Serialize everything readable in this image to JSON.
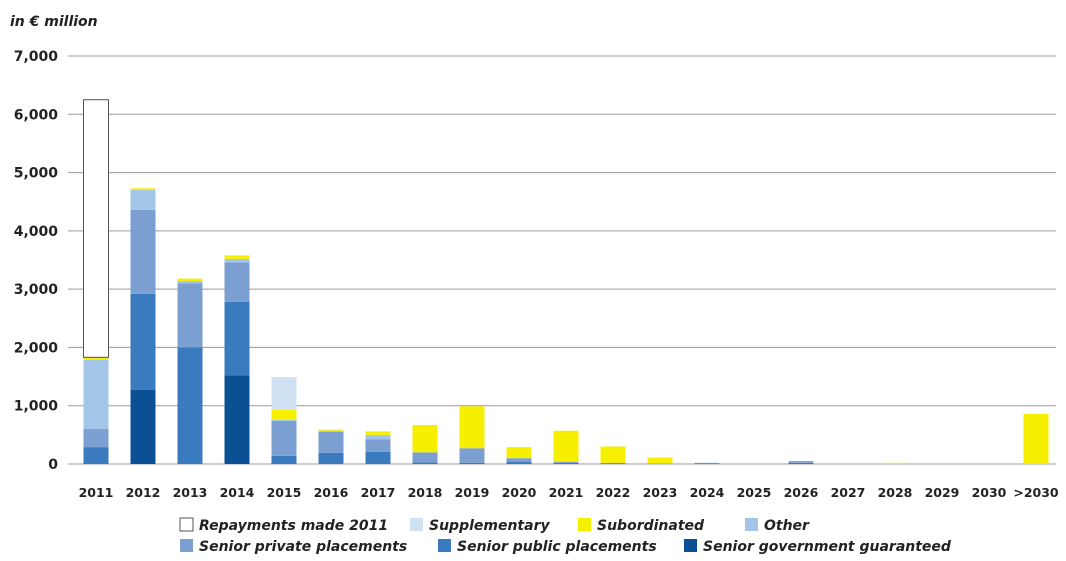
{
  "chart_data": {
    "type": "bar",
    "stacked": true,
    "unit_label": "in € million",
    "ylim": [
      0,
      7000
    ],
    "yticks": [
      "0",
      "1,000",
      "2,000",
      "3,000",
      "4,000",
      "5,000",
      "6,000",
      "7,000"
    ],
    "grid": true,
    "legend_position": "bottom",
    "categories": [
      "2011",
      "2012",
      "2013",
      "2014",
      "2015",
      "2016",
      "2017",
      "2018",
      "2019",
      "2020",
      "2021",
      "2022",
      "2023",
      "2024",
      "2025",
      "2026",
      "2027",
      "2028",
      "2029",
      "2030",
      ">2030"
    ],
    "series": [
      {
        "name": "Senior government guaranteed",
        "color": "#0b4f94",
        "values": [
          0,
          1270,
          0,
          1520,
          0,
          0,
          0,
          0,
          0,
          0,
          0,
          0,
          0,
          0,
          0,
          0,
          0,
          0,
          0,
          0,
          0
        ]
      },
      {
        "name": "Senior public placements",
        "color": "#3a7bbf",
        "values": [
          290,
          1650,
          2000,
          1260,
          140,
          190,
          210,
          30,
          20,
          40,
          20,
          10,
          0,
          10,
          0,
          20,
          0,
          0,
          0,
          0,
          0
        ]
      },
      {
        "name": "Senior private placements",
        "color": "#7a9fd0",
        "values": [
          310,
          1440,
          1100,
          680,
          600,
          360,
          210,
          170,
          250,
          60,
          20,
          10,
          10,
          10,
          0,
          30,
          0,
          0,
          0,
          0,
          0
        ]
      },
      {
        "name": "Other",
        "color": "#a3c6e8",
        "values": [
          1190,
          340,
          40,
          60,
          20,
          20,
          80,
          0,
          0,
          0,
          0,
          0,
          0,
          0,
          0,
          0,
          0,
          0,
          0,
          0,
          0
        ]
      },
      {
        "name": "Subordinated",
        "color": "#f7ef00",
        "values": [
          40,
          30,
          40,
          60,
          170,
          20,
          60,
          470,
          720,
          190,
          530,
          280,
          100,
          0,
          0,
          0,
          0,
          20,
          0,
          0,
          860
        ]
      },
      {
        "name": "Supplementary",
        "color": "#cfe0f2",
        "values": [
          0,
          0,
          0,
          0,
          560,
          0,
          0,
          0,
          0,
          0,
          0,
          0,
          0,
          0,
          0,
          0,
          0,
          0,
          0,
          0,
          0
        ]
      },
      {
        "name": "Repayments made 2011",
        "color": "#ffffff",
        "values": [
          4420,
          0,
          0,
          0,
          0,
          0,
          0,
          0,
          0,
          0,
          0,
          0,
          0,
          0,
          0,
          0,
          0,
          0,
          0,
          0,
          0
        ]
      }
    ],
    "legend": [
      [
        "Repayments made 2011",
        "Supplementary",
        "Subordinated",
        "Other"
      ],
      [
        "Senior private placements",
        "Senior public placements",
        "Senior government guaranteed"
      ]
    ]
  }
}
